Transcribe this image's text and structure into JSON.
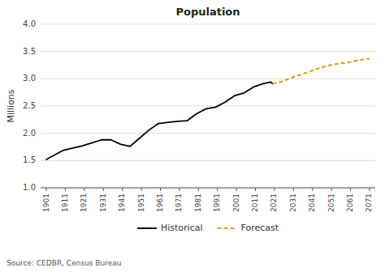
{
  "chart_data": {
    "type": "line",
    "title": "Population",
    "y_label": "Millions",
    "source": "Source: CEDBR, Census Bureau",
    "xlim": [
      1898,
      2074
    ],
    "xticks": [
      1901,
      1911,
      1921,
      1931,
      1941,
      1951,
      1961,
      1971,
      1981,
      1991,
      2001,
      2011,
      2021,
      2031,
      2041,
      2051,
      2061,
      2071
    ],
    "ylim": [
      1.0,
      4.0
    ],
    "yticks": [
      {
        "value": 1.0,
        "label": "1.0"
      },
      1.5,
      {
        "value": 2.0,
        "label": "2.0"
      },
      2.5,
      {
        "value": 3.0,
        "label": "3.0"
      },
      3.5,
      {
        "value": 4.0,
        "label": "4.0"
      }
    ],
    "grid": "y",
    "legend": "bottom",
    "series": [
      {
        "name": "Historical",
        "color": "#000000",
        "line_style": "solid",
        "x": [
          1901,
          1910,
          1920,
          1930,
          1935,
          1940,
          1945,
          1950,
          1955,
          1960,
          1965,
          1970,
          1975,
          1980,
          1985,
          1990,
          1995,
          2000,
          2005,
          2010,
          2015,
          2019,
          2020
        ],
        "values": [
          1.52,
          1.69,
          1.77,
          1.88,
          1.88,
          1.8,
          1.76,
          1.91,
          2.06,
          2.18,
          2.2,
          2.22,
          2.23,
          2.36,
          2.45,
          2.48,
          2.57,
          2.69,
          2.74,
          2.85,
          2.91,
          2.94,
          2.91
        ]
      },
      {
        "name": "Forecast",
        "color": "#D4A017",
        "line_style": "dashed",
        "x": [
          2020,
          2025,
          2030,
          2035,
          2040,
          2045,
          2050,
          2055,
          2060,
          2065,
          2071
        ],
        "values": [
          2.91,
          2.95,
          3.02,
          3.08,
          3.14,
          3.2,
          3.25,
          3.28,
          3.3,
          3.34,
          3.37
        ]
      }
    ]
  }
}
